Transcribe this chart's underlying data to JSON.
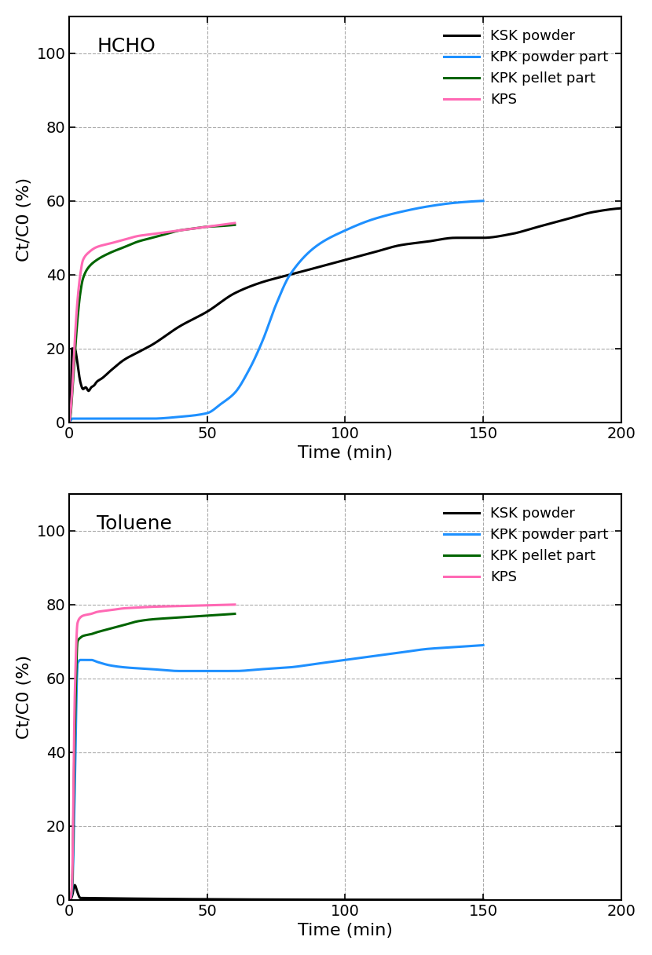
{
  "hcho": {
    "label": "HCHO",
    "series": [
      {
        "name": "KSK powder",
        "color": "#000000",
        "linewidth": 2.2,
        "x": [
          0,
          0.5,
          1,
          2,
          3,
          4,
          5,
          6,
          7,
          8,
          9,
          10,
          12,
          15,
          20,
          25,
          30,
          40,
          50,
          60,
          70,
          80,
          90,
          100,
          110,
          120,
          130,
          140,
          150,
          160,
          170,
          180,
          190,
          200
        ],
        "y": [
          0,
          3,
          20,
          20,
          16,
          11,
          9,
          9.5,
          8.5,
          9.5,
          10,
          11,
          12,
          14,
          17,
          19,
          21,
          26,
          30,
          35,
          38,
          40,
          42,
          44,
          46,
          48,
          49,
          50,
          50,
          51,
          53,
          55,
          57,
          58
        ]
      },
      {
        "name": "KPK powder part",
        "color": "#1E90FF",
        "linewidth": 2.2,
        "x": [
          0,
          0.5,
          1,
          2,
          3,
          5,
          10,
          20,
          30,
          40,
          50,
          55,
          60,
          65,
          70,
          75,
          80,
          90,
          100,
          110,
          120,
          130,
          140,
          150
        ],
        "y": [
          0,
          0.5,
          1,
          1,
          1,
          1,
          1,
          1,
          1,
          1.5,
          2.5,
          5,
          8,
          14,
          22,
          32,
          40,
          48,
          52,
          55,
          57,
          58.5,
          59.5,
          60
        ]
      },
      {
        "name": "KPK pellet part",
        "color": "#006400",
        "linewidth": 2.2,
        "x": [
          0,
          0.5,
          1,
          2,
          3,
          4,
          5,
          7,
          10,
          15,
          20,
          25,
          30,
          35,
          40,
          45,
          50,
          55,
          60
        ],
        "y": [
          0,
          2,
          7,
          18,
          28,
          35,
          39,
          42,
          44,
          46,
          47.5,
          49,
          50,
          51,
          52,
          52.5,
          53,
          53.2,
          53.5
        ]
      },
      {
        "name": "KPS",
        "color": "#FF69B4",
        "linewidth": 2.2,
        "x": [
          0,
          0.5,
          1,
          2,
          3,
          4,
          5,
          7,
          10,
          15,
          20,
          25,
          30,
          35,
          40,
          45,
          50,
          55,
          60
        ],
        "y": [
          0,
          3,
          8,
          22,
          33,
          40,
          44,
          46,
          47.5,
          48.5,
          49.5,
          50.5,
          51,
          51.5,
          52,
          52.5,
          53,
          53.5,
          54
        ]
      }
    ]
  },
  "toluene": {
    "label": "Toluene",
    "series": [
      {
        "name": "KSK powder",
        "color": "#000000",
        "linewidth": 2.2,
        "x": [
          0,
          0.5,
          1,
          2,
          3,
          4,
          150
        ],
        "y": [
          0,
          0.2,
          1,
          4,
          2,
          0.5,
          0
        ]
      },
      {
        "name": "KPK powder part",
        "color": "#1E90FF",
        "linewidth": 2.2,
        "x": [
          0,
          0.5,
          1,
          2,
          3,
          4,
          5,
          8,
          10,
          15,
          20,
          30,
          40,
          50,
          60,
          70,
          80,
          90,
          100,
          110,
          120,
          130,
          140,
          150
        ],
        "y": [
          0,
          0.5,
          2,
          30,
          64,
          65,
          65,
          65,
          64.5,
          63.5,
          63,
          62.5,
          62,
          62,
          62,
          62.5,
          63,
          64,
          65,
          66,
          67,
          68,
          68.5,
          69
        ]
      },
      {
        "name": "KPK pellet part",
        "color": "#006400",
        "linewidth": 2.2,
        "x": [
          0,
          0.5,
          1,
          2,
          3,
          4,
          5,
          8,
          10,
          15,
          20,
          25,
          30,
          40,
          50,
          60
        ],
        "y": [
          0,
          0.5,
          3,
          45,
          70,
          71,
          71.5,
          72,
          72.5,
          73.5,
          74.5,
          75.5,
          76,
          76.5,
          77,
          77.5
        ]
      },
      {
        "name": "KPS",
        "color": "#FF69B4",
        "linewidth": 2.2,
        "x": [
          0,
          0.5,
          1,
          2,
          3,
          4,
          5,
          8,
          10,
          15,
          20,
          25,
          30,
          40,
          50,
          60
        ],
        "y": [
          0,
          0.5,
          4,
          55,
          75,
          76.5,
          77,
          77.5,
          78,
          78.5,
          79,
          79.2,
          79.4,
          79.6,
          79.8,
          80
        ]
      }
    ]
  },
  "ylabel": "Ct/C0 (%)",
  "xlabel": "Time (min)",
  "ylim": [
    0,
    110
  ],
  "xlim": [
    0,
    200
  ],
  "yticks": [
    0,
    20,
    40,
    60,
    80,
    100
  ],
  "xticks": [
    0,
    50,
    100,
    150,
    200
  ],
  "grid_color": "#aaaaaa",
  "grid_linestyle": "--",
  "legend_loc": "upper right",
  "label_fontsize": 16,
  "tick_fontsize": 14,
  "legend_fontsize": 13,
  "annotation_fontsize": 18,
  "background_color": "#ffffff"
}
